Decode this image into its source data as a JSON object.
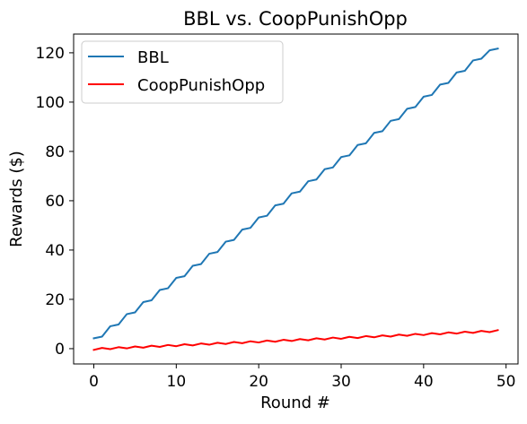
{
  "chart_data": {
    "type": "line",
    "title": "BBL vs. CoopPunishOpp",
    "xlabel": "Round #",
    "ylabel": "Rewards ($)",
    "xlim": [
      -2.45,
      51.45
    ],
    "ylim": [
      -6.2,
      127.6
    ],
    "xticks": [
      0,
      10,
      20,
      30,
      40,
      50
    ],
    "yticks": [
      0,
      20,
      40,
      60,
      80,
      100,
      120
    ],
    "grid": false,
    "legend_position": "top-left",
    "x": [
      0,
      1,
      2,
      3,
      4,
      5,
      6,
      7,
      8,
      9,
      10,
      11,
      12,
      13,
      14,
      15,
      16,
      17,
      18,
      19,
      20,
      21,
      22,
      23,
      24,
      25,
      26,
      27,
      28,
      29,
      30,
      31,
      32,
      33,
      34,
      35,
      36,
      37,
      38,
      39,
      40,
      41,
      42,
      43,
      44,
      45,
      46,
      47,
      48,
      49
    ],
    "series": [
      {
        "name": "BBL",
        "color": "#1f77b4",
        "values": [
          4.2,
          4.9,
          9.1,
          9.8,
          14.0,
          14.7,
          18.9,
          19.6,
          23.8,
          24.5,
          28.7,
          29.4,
          33.6,
          34.3,
          38.5,
          39.2,
          43.4,
          44.1,
          48.3,
          49.0,
          53.2,
          53.9,
          58.1,
          58.8,
          63.0,
          63.7,
          67.9,
          68.6,
          72.8,
          73.5,
          77.7,
          78.4,
          82.6,
          83.3,
          87.5,
          88.2,
          92.4,
          93.1,
          97.3,
          98.0,
          102.2,
          102.9,
          107.1,
          107.8,
          112.0,
          112.7,
          116.9,
          117.6,
          121.0,
          121.7
        ]
      },
      {
        "name": "CoopPunishOpp",
        "color": "#ff0000",
        "values": [
          -0.5,
          0.3,
          -0.2,
          0.6,
          0.1,
          0.9,
          0.4,
          1.2,
          0.7,
          1.5,
          1.0,
          1.8,
          1.3,
          2.1,
          1.6,
          2.4,
          1.9,
          2.7,
          2.2,
          3.0,
          2.5,
          3.3,
          2.8,
          3.6,
          3.1,
          3.9,
          3.4,
          4.2,
          3.7,
          4.5,
          4.0,
          4.8,
          4.3,
          5.1,
          4.6,
          5.4,
          4.9,
          5.7,
          5.2,
          6.0,
          5.5,
          6.3,
          5.8,
          6.6,
          6.1,
          6.9,
          6.4,
          7.2,
          6.7,
          7.5
        ]
      }
    ]
  }
}
